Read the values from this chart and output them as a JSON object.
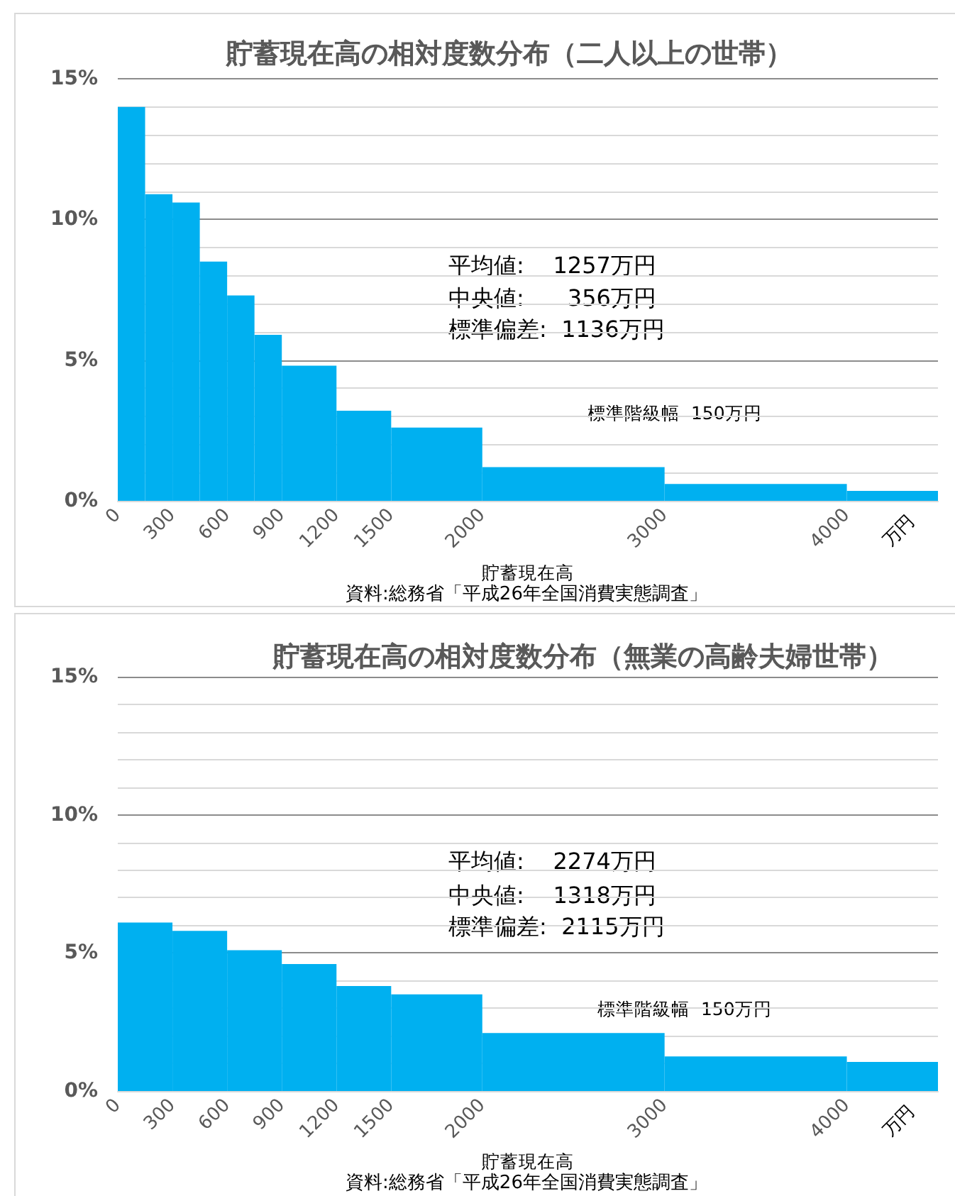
{
  "chart_data": [
    {
      "type": "histogram",
      "title": "貯蓄現在高の相対度数分布（二人以上の世帯）",
      "xlabel": "貯蓄現在高",
      "bins": [
        0,
        150,
        300,
        450,
        600,
        750,
        900,
        1200,
        1500,
        2000,
        3000,
        4000,
        4500
      ],
      "values": [
        14,
        10.9,
        10.6,
        8.5,
        7.3,
        5.9,
        4.8,
        3.2,
        2.6,
        1.2,
        0.6,
        0.35
      ],
      "color": "#00b0f0",
      "xlim": [
        0,
        4500
      ],
      "xticks": [
        0,
        300,
        600,
        900,
        1200,
        1500,
        2000,
        3000,
        4000
      ],
      "ylim": [
        0,
        15
      ],
      "yticks": [
        {
          "value": 0,
          "label": "0%"
        },
        {
          "value": 1,
          "label": null
        },
        {
          "value": 2,
          "label": null
        },
        {
          "value": 3,
          "label": null
        },
        {
          "value": 4,
          "label": null
        },
        {
          "value": 5,
          "label": "5%"
        },
        {
          "value": 6,
          "label": null
        },
        {
          "value": 7,
          "label": null
        },
        {
          "value": 8,
          "label": null
        },
        {
          "value": 9,
          "label": null
        },
        {
          "value": 10,
          "label": "10%"
        },
        {
          "value": 11,
          "label": null
        },
        {
          "value": 12,
          "label": null
        },
        {
          "value": 13,
          "label": null
        },
        {
          "value": 14,
          "label": null
        },
        {
          "value": 15,
          "label": "15%"
        }
      ],
      "grid": "y",
      "annotations": [
        "平均値:    1257万円",
        "中央値:      356万円",
        "標準偏差:  1136万円",
        "標準階級幅  150万円",
        "万円",
        "資料:総務省「平成26年全国消費実態調査」"
      ]
    },
    {
      "type": "histogram",
      "title": "貯蓄現在高の相対度数分布（無業の高齢夫婦世帯）",
      "xlabel": "貯蓄現在高",
      "bins": [
        0,
        300,
        600,
        900,
        1200,
        1500,
        2000,
        3000,
        4000,
        4500
      ],
      "values": [
        6.1,
        5.8,
        5.1,
        4.6,
        3.8,
        3.5,
        2.1,
        1.25,
        1.05
      ],
      "color": "#00b0f0",
      "xlim": [
        0,
        4500
      ],
      "xticks": [
        0,
        300,
        600,
        900,
        1200,
        1500,
        2000,
        3000,
        4000
      ],
      "ylim": [
        0,
        15
      ],
      "yticks": [
        {
          "value": 0,
          "label": "0%"
        },
        {
          "value": 1,
          "label": null
        },
        {
          "value": 2,
          "label": null
        },
        {
          "value": 3,
          "label": null
        },
        {
          "value": 4,
          "label": null
        },
        {
          "value": 5,
          "label": "5%"
        },
        {
          "value": 6,
          "label": null
        },
        {
          "value": 7,
          "label": null
        },
        {
          "value": 8,
          "label": null
        },
        {
          "value": 9,
          "label": null
        },
        {
          "value": 10,
          "label": "10%"
        },
        {
          "value": 11,
          "label": null
        },
        {
          "value": 12,
          "label": null
        },
        {
          "value": 13,
          "label": null
        },
        {
          "value": 14,
          "label": null
        },
        {
          "value": 15,
          "label": "15%"
        }
      ],
      "grid": "y",
      "annotations": [
        "平均値:    2274万円",
        "中央値:    1318万円",
        "標準偏差:  2115万円",
        "標準階級幅  150万円",
        "万円",
        "資料:総務省「平成26年全国消費実態調査」"
      ]
    }
  ]
}
